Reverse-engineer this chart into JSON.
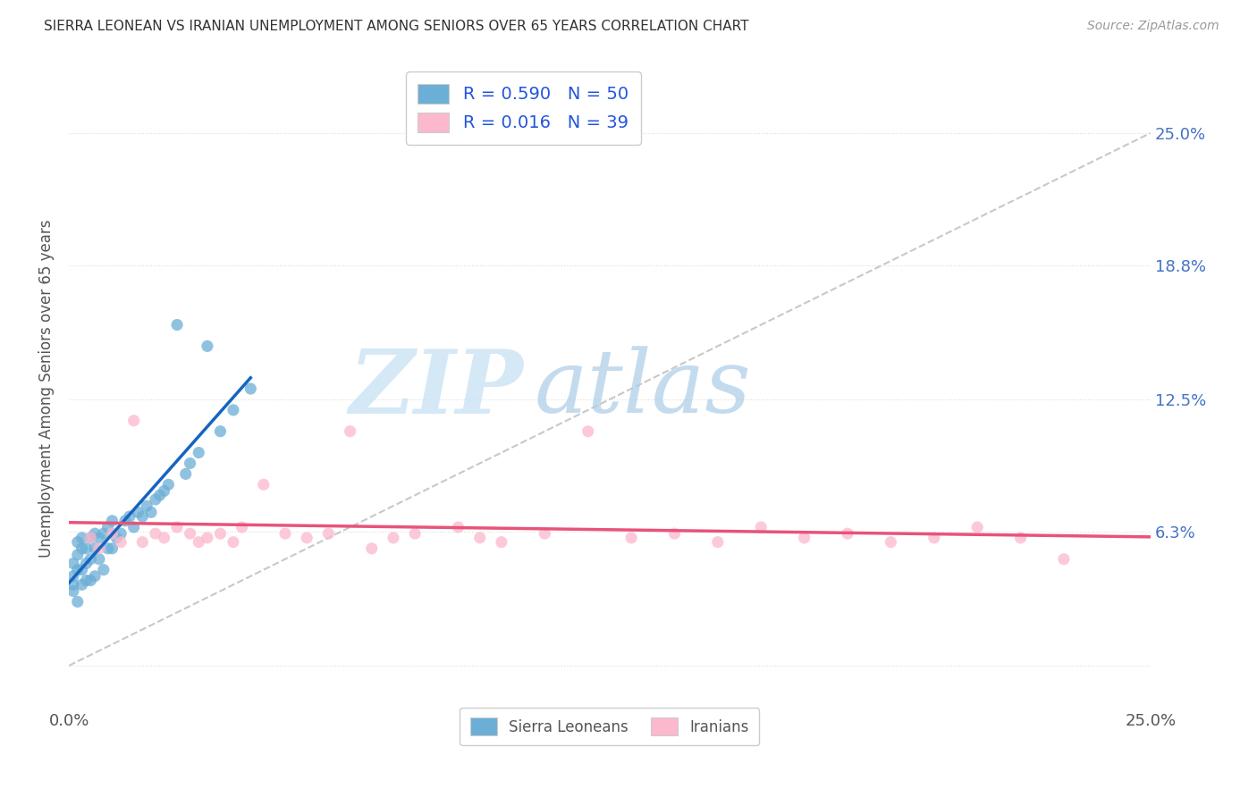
{
  "title": "SIERRA LEONEAN VS IRANIAN UNEMPLOYMENT AMONG SENIORS OVER 65 YEARS CORRELATION CHART",
  "source": "Source: ZipAtlas.com",
  "ylabel": "Unemployment Among Seniors over 65 years",
  "xlim": [
    0.0,
    0.25
  ],
  "ylim": [
    -0.02,
    0.28
  ],
  "ytick_values": [
    0.0,
    0.063,
    0.125,
    0.188,
    0.25
  ],
  "ytick_labels_left": [
    "",
    "",
    "",
    "",
    ""
  ],
  "xtick_values": [
    0.0,
    0.25
  ],
  "xtick_labels": [
    "0.0%",
    "25.0%"
  ],
  "right_ytick_values": [
    0.063,
    0.125,
    0.188,
    0.25
  ],
  "right_ytick_labels": [
    "6.3%",
    "12.5%",
    "18.8%",
    "25.0%"
  ],
  "sl_color": "#6baed6",
  "ir_color": "#fcb8cc",
  "sl_R": 0.59,
  "sl_N": 50,
  "ir_R": 0.016,
  "ir_N": 39,
  "sl_line_color": "#1565c0",
  "ir_line_color": "#e8537a",
  "diagonal_color": "#bbbbbb",
  "background_color": "#ffffff",
  "watermark_zip_color": "#cde4f5",
  "watermark_atlas_color": "#b0cfe8",
  "sl_x": [
    0.001,
    0.001,
    0.001,
    0.001,
    0.002,
    0.002,
    0.002,
    0.002,
    0.003,
    0.003,
    0.003,
    0.003,
    0.004,
    0.004,
    0.004,
    0.005,
    0.005,
    0.005,
    0.006,
    0.006,
    0.006,
    0.007,
    0.007,
    0.008,
    0.008,
    0.009,
    0.009,
    0.01,
    0.01,
    0.011,
    0.012,
    0.013,
    0.014,
    0.015,
    0.016,
    0.017,
    0.018,
    0.019,
    0.02,
    0.021,
    0.022,
    0.023,
    0.025,
    0.027,
    0.028,
    0.03,
    0.032,
    0.035,
    0.038,
    0.042
  ],
  "sl_y": [
    0.035,
    0.038,
    0.042,
    0.048,
    0.03,
    0.045,
    0.052,
    0.058,
    0.038,
    0.045,
    0.055,
    0.06,
    0.04,
    0.048,
    0.055,
    0.04,
    0.05,
    0.06,
    0.042,
    0.055,
    0.062,
    0.05,
    0.06,
    0.045,
    0.062,
    0.055,
    0.065,
    0.055,
    0.068,
    0.06,
    0.062,
    0.068,
    0.07,
    0.065,
    0.072,
    0.07,
    0.075,
    0.072,
    0.078,
    0.08,
    0.082,
    0.085,
    0.16,
    0.09,
    0.095,
    0.1,
    0.15,
    0.11,
    0.12,
    0.13
  ],
  "ir_x": [
    0.005,
    0.007,
    0.01,
    0.012,
    0.015,
    0.017,
    0.02,
    0.022,
    0.025,
    0.028,
    0.03,
    0.032,
    0.035,
    0.038,
    0.04,
    0.045,
    0.05,
    0.055,
    0.06,
    0.065,
    0.07,
    0.075,
    0.08,
    0.09,
    0.095,
    0.1,
    0.11,
    0.12,
    0.13,
    0.14,
    0.15,
    0.16,
    0.17,
    0.18,
    0.19,
    0.2,
    0.21,
    0.22,
    0.23
  ],
  "ir_y": [
    0.06,
    0.055,
    0.062,
    0.058,
    0.115,
    0.058,
    0.062,
    0.06,
    0.065,
    0.062,
    0.058,
    0.06,
    0.062,
    0.058,
    0.065,
    0.085,
    0.062,
    0.06,
    0.062,
    0.11,
    0.055,
    0.06,
    0.062,
    0.065,
    0.06,
    0.058,
    0.062,
    0.11,
    0.06,
    0.062,
    0.058,
    0.065,
    0.06,
    0.062,
    0.058,
    0.06,
    0.065,
    0.06,
    0.05
  ]
}
